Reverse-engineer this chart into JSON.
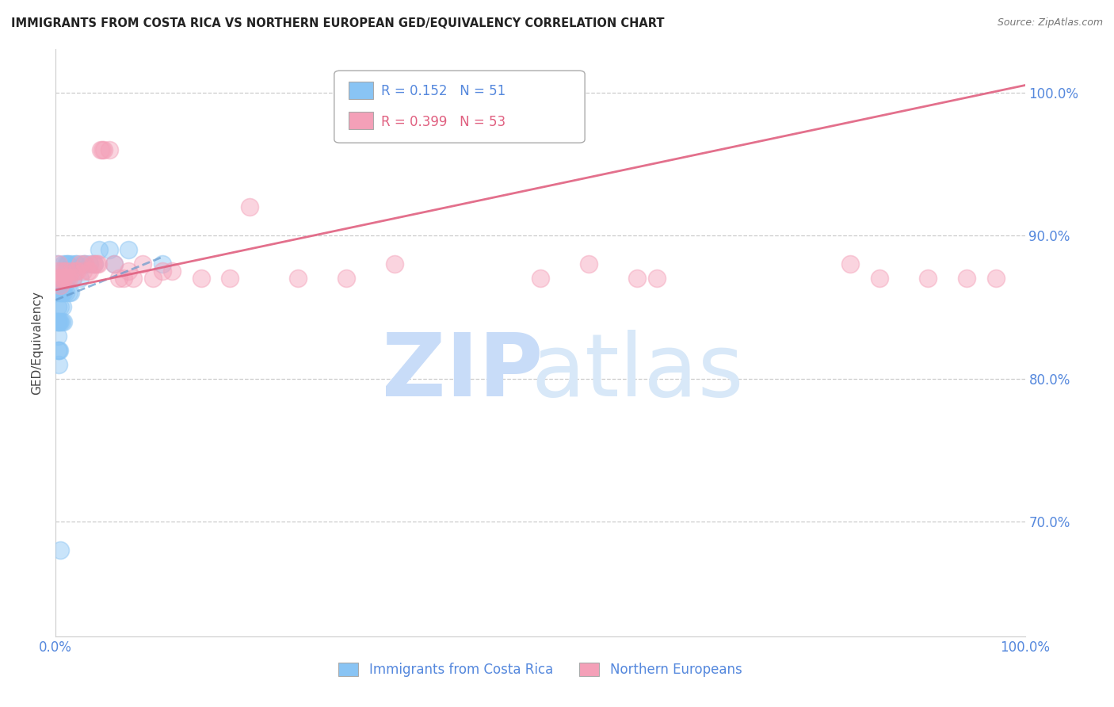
{
  "title": "IMMIGRANTS FROM COSTA RICA VS NORTHERN EUROPEAN GED/EQUIVALENCY CORRELATION CHART",
  "source": "Source: ZipAtlas.com",
  "ylabel": "GED/Equivalency",
  "xmin": 0.0,
  "xmax": 1.0,
  "ymin": 0.62,
  "ymax": 1.03,
  "yticks": [
    0.7,
    0.8,
    0.9,
    1.0
  ],
  "ytick_labels": [
    "70.0%",
    "80.0%",
    "90.0%",
    "100.0%"
  ],
  "xticks": [
    0.0,
    0.1,
    0.2,
    0.3,
    0.4,
    0.5,
    0.6,
    0.7,
    0.8,
    0.9,
    1.0
  ],
  "xtick_labels": [
    "0.0%",
    "",
    "",
    "",
    "",
    "",
    "",
    "",
    "",
    "",
    "100.0%"
  ],
  "legend_blue_r": "R = 0.152",
  "legend_blue_n": "N = 51",
  "legend_pink_r": "R = 0.399",
  "legend_pink_n": "N = 53",
  "legend_label_blue": "Immigrants from Costa Rica",
  "legend_label_pink": "Northern Europeans",
  "blue_color": "#89C4F4",
  "pink_color": "#F4A0B8",
  "blue_line_color": "#6699CC",
  "pink_line_color": "#E06080",
  "axis_color": "#5588DD",
  "watermark_zip_color": "#C8DCF8",
  "watermark_atlas_color": "#D8E8F8",
  "blue_scatter_x": [
    0.001,
    0.001,
    0.001,
    0.001,
    0.002,
    0.002,
    0.002,
    0.002,
    0.003,
    0.003,
    0.003,
    0.004,
    0.004,
    0.004,
    0.004,
    0.005,
    0.005,
    0.005,
    0.006,
    0.006,
    0.006,
    0.007,
    0.007,
    0.007,
    0.008,
    0.008,
    0.008,
    0.008,
    0.009,
    0.01,
    0.01,
    0.011,
    0.012,
    0.013,
    0.014,
    0.015,
    0.016,
    0.018,
    0.02,
    0.022,
    0.025,
    0.028,
    0.03,
    0.035,
    0.04,
    0.045,
    0.055,
    0.06,
    0.075,
    0.11,
    0.005
  ],
  "blue_scatter_y": [
    0.84,
    0.86,
    0.87,
    0.88,
    0.82,
    0.83,
    0.84,
    0.85,
    0.81,
    0.82,
    0.84,
    0.82,
    0.84,
    0.86,
    0.87,
    0.84,
    0.85,
    0.86,
    0.84,
    0.86,
    0.87,
    0.85,
    0.86,
    0.87,
    0.84,
    0.86,
    0.87,
    0.88,
    0.865,
    0.86,
    0.88,
    0.87,
    0.88,
    0.88,
    0.86,
    0.86,
    0.88,
    0.87,
    0.88,
    0.88,
    0.87,
    0.88,
    0.88,
    0.88,
    0.88,
    0.89,
    0.89,
    0.88,
    0.89,
    0.88,
    0.68
  ],
  "pink_scatter_x": [
    0.001,
    0.002,
    0.003,
    0.004,
    0.005,
    0.006,
    0.007,
    0.008,
    0.009,
    0.01,
    0.012,
    0.014,
    0.016,
    0.018,
    0.02,
    0.022,
    0.025,
    0.028,
    0.03,
    0.033,
    0.035,
    0.038,
    0.04,
    0.042,
    0.044,
    0.046,
    0.048,
    0.05,
    0.055,
    0.06,
    0.065,
    0.07,
    0.075,
    0.08,
    0.09,
    0.1,
    0.11,
    0.12,
    0.15,
    0.18,
    0.2,
    0.25,
    0.3,
    0.35,
    0.5,
    0.55,
    0.6,
    0.62,
    0.82,
    0.85,
    0.9,
    0.94,
    0.97
  ],
  "pink_scatter_y": [
    0.87,
    0.875,
    0.88,
    0.87,
    0.865,
    0.87,
    0.875,
    0.87,
    0.87,
    0.875,
    0.87,
    0.87,
    0.875,
    0.87,
    0.875,
    0.875,
    0.88,
    0.875,
    0.88,
    0.875,
    0.875,
    0.88,
    0.88,
    0.88,
    0.88,
    0.96,
    0.96,
    0.96,
    0.96,
    0.88,
    0.87,
    0.87,
    0.875,
    0.87,
    0.88,
    0.87,
    0.875,
    0.875,
    0.87,
    0.87,
    0.92,
    0.87,
    0.87,
    0.88,
    0.87,
    0.88,
    0.87,
    0.87,
    0.88,
    0.87,
    0.87,
    0.87,
    0.87
  ],
  "blue_line_x0": 0.0,
  "blue_line_y0": 0.855,
  "blue_line_x1": 0.11,
  "blue_line_y1": 0.885,
  "pink_line_x0": 0.0,
  "pink_line_y0": 0.862,
  "pink_line_x1": 1.0,
  "pink_line_y1": 1.005
}
